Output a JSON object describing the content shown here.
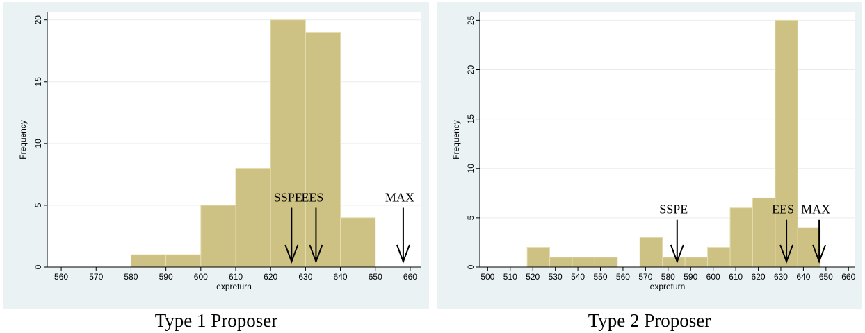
{
  "panels": [
    {
      "caption": "Type 1 Proposer",
      "chart_data": {
        "type": "bar",
        "xlabel": "expreturn",
        "ylabel": "Frequency",
        "xlim": [
          556,
          663
        ],
        "ylim": [
          0,
          20.6
        ],
        "xticks": [
          560,
          570,
          580,
          590,
          600,
          610,
          620,
          630,
          640,
          650,
          660
        ],
        "yticks": [
          0,
          5,
          10,
          15,
          20
        ],
        "grid": true,
        "bars": [
          {
            "x0": 580,
            "x1": 590,
            "value": 1
          },
          {
            "x0": 590,
            "x1": 600,
            "value": 1
          },
          {
            "x0": 600,
            "x1": 610,
            "value": 5
          },
          {
            "x0": 610,
            "x1": 620,
            "value": 8
          },
          {
            "x0": 620,
            "x1": 630,
            "value": 20
          },
          {
            "x0": 630,
            "x1": 640,
            "value": 19
          },
          {
            "x0": 640,
            "x1": 650,
            "value": 4
          }
        ],
        "annotations": [
          {
            "label": "SSPE",
            "x": 626
          },
          {
            "label": "EES",
            "x": 633
          },
          {
            "label": "MAX",
            "x": 658
          }
        ]
      }
    },
    {
      "caption": "Type 2 Proposer",
      "chart_data": {
        "type": "bar",
        "xlabel": "expreturn",
        "ylabel": "Frequency",
        "xlim": [
          496.5,
          663
        ],
        "ylim": [
          0,
          25.8
        ],
        "xticks": [
          500,
          510,
          520,
          530,
          540,
          550,
          560,
          570,
          580,
          590,
          600,
          610,
          620,
          630,
          640,
          650,
          660
        ],
        "yticks": [
          0,
          5,
          10,
          15,
          20,
          25
        ],
        "grid": true,
        "bars": [
          {
            "x0": 517.5,
            "x1": 527.5,
            "value": 2
          },
          {
            "x0": 527.5,
            "x1": 537.5,
            "value": 1
          },
          {
            "x0": 537.5,
            "x1": 547.5,
            "value": 1
          },
          {
            "x0": 547.5,
            "x1": 557.5,
            "value": 1
          },
          {
            "x0": 567.5,
            "x1": 577.5,
            "value": 3
          },
          {
            "x0": 577.5,
            "x1": 587.5,
            "value": 1
          },
          {
            "x0": 587.5,
            "x1": 597.5,
            "value": 1
          },
          {
            "x0": 597.5,
            "x1": 607.5,
            "value": 2
          },
          {
            "x0": 607.5,
            "x1": 617.5,
            "value": 6
          },
          {
            "x0": 617.5,
            "x1": 627.5,
            "value": 7
          },
          {
            "x0": 627.5,
            "x1": 637.5,
            "value": 25
          },
          {
            "x0": 637.5,
            "x1": 647.5,
            "value": 4
          }
        ],
        "annotations": [
          {
            "label": "SSPE",
            "x": 584
          },
          {
            "label": "EES",
            "x": 632.5
          },
          {
            "label": "MAX",
            "x": 647
          }
        ]
      }
    }
  ],
  "colors": {
    "panel_background": "#eaf2f3",
    "plot_background": "#ffffff",
    "bar_fill": "#cdc284",
    "bar_edge": "#e6ddb0",
    "grid": "#e8eeee",
    "axis": "#000000"
  }
}
